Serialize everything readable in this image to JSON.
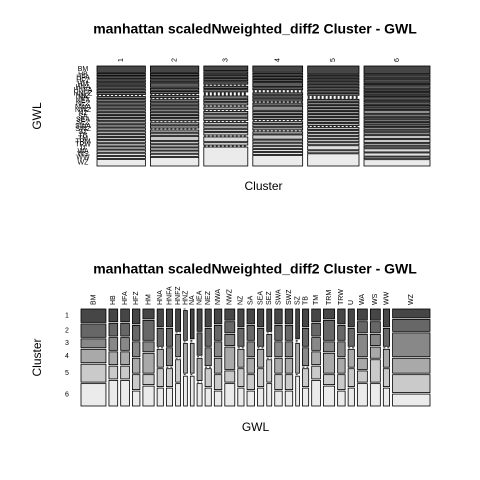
{
  "chart_data": [
    {
      "type": "mosaic",
      "title": "manhattan scaledNweighted_diff2 Cluster - GWL",
      "xlabel": "Cluster",
      "ylabel": "GWL",
      "x_categories": [
        "1",
        "2",
        "3",
        "4",
        "5",
        "6"
      ],
      "y_categories": [
        "BM",
        "HB",
        "HFA",
        "HFZ",
        "HM",
        "HNA",
        "HNFA",
        "HNFZ",
        "HNZ",
        "NA",
        "NEA",
        "NEZ",
        "NWA",
        "NWZ",
        "NZ",
        "SA",
        "SEA",
        "SEZ",
        "SWA",
        "SWZ",
        "SZ",
        "TB",
        "TM",
        "TRM",
        "TRW",
        "U",
        "WA",
        "WS",
        "WW",
        "WZ"
      ],
      "values": [
        [
          3,
          1,
          1,
          1,
          1,
          1,
          1,
          1,
          0,
          1,
          1,
          1,
          1,
          1,
          1,
          1,
          1,
          1,
          1,
          1,
          1,
          1,
          1,
          1,
          1,
          1,
          1,
          1,
          1,
          3
        ],
        [
          3,
          1,
          1,
          1,
          2,
          1,
          1,
          0,
          1,
          0,
          1,
          1,
          1,
          1,
          1,
          1,
          1,
          0,
          1,
          1,
          0,
          1,
          1,
          2,
          1,
          1,
          1,
          1,
          1,
          4
        ],
        [
          2,
          1,
          1,
          1,
          1,
          0,
          1,
          1,
          0,
          0,
          0,
          1,
          1,
          1,
          0,
          1,
          0,
          1,
          1,
          1,
          0,
          1,
          1,
          1,
          1,
          0,
          2,
          1,
          0,
          8
        ],
        [
          3,
          1,
          1,
          1,
          2,
          1,
          0,
          0,
          1,
          1,
          1,
          0,
          1,
          2,
          1,
          1,
          1,
          0,
          1,
          1,
          1,
          0,
          1,
          2,
          1,
          1,
          1,
          1,
          1,
          5
        ],
        [
          4,
          1,
          1,
          1,
          1,
          1,
          1,
          1,
          0,
          0,
          0,
          1,
          1,
          1,
          1,
          1,
          1,
          1,
          1,
          1,
          0,
          1,
          1,
          1,
          1,
          1,
          1,
          2,
          1,
          6
        ],
        [
          5,
          2,
          2,
          1,
          2,
          1,
          1,
          1,
          1,
          1,
          1,
          1,
          1,
          2,
          1,
          1,
          1,
          1,
          1,
          1,
          1,
          1,
          2,
          2,
          1,
          1,
          2,
          2,
          1,
          4
        ]
      ]
    },
    {
      "type": "mosaic",
      "title": "manhattan scaledNweighted_diff2 Cluster - GWL",
      "xlabel": "GWL",
      "ylabel": "Cluster",
      "x_categories": [
        "BM",
        "HB",
        "HFA",
        "HFZ",
        "HM",
        "HNA",
        "HNFA",
        "HNFZ",
        "HNZ",
        "NA",
        "NEA",
        "NEZ",
        "NWA",
        "NWZ",
        "NZ",
        "SA",
        "SEA",
        "SEZ",
        "SWA",
        "SWZ",
        "SZ",
        "TB",
        "TM",
        "TRM",
        "TRW",
        "U",
        "WA",
        "WS",
        "WW",
        "WZ"
      ],
      "y_categories": [
        "1",
        "2",
        "3",
        "4",
        "5",
        "6"
      ],
      "values": [
        [
          3,
          3,
          2,
          3,
          4,
          5
        ],
        [
          1,
          1,
          1,
          1,
          1,
          2
        ],
        [
          1,
          1,
          1,
          1,
          1,
          2
        ],
        [
          1,
          1,
          1,
          1,
          1,
          1
        ],
        [
          1,
          2,
          1,
          2,
          1,
          2
        ],
        [
          1,
          1,
          0,
          1,
          1,
          1
        ],
        [
          1,
          1,
          1,
          0,
          1,
          1
        ],
        [
          1,
          0,
          1,
          0,
          1,
          1
        ],
        [
          0,
          1,
          0,
          1,
          0,
          1
        ],
        [
          1,
          0,
          0,
          1,
          0,
          1
        ],
        [
          1,
          1,
          0,
          1,
          0,
          1
        ],
        [
          1,
          1,
          1,
          0,
          1,
          1
        ],
        [
          1,
          1,
          1,
          1,
          1,
          1
        ],
        [
          1,
          1,
          1,
          2,
          1,
          2
        ],
        [
          1,
          1,
          0,
          1,
          1,
          1
        ],
        [
          1,
          1,
          1,
          1,
          1,
          1
        ],
        [
          1,
          1,
          0,
          1,
          1,
          1
        ],
        [
          1,
          0,
          1,
          0,
          1,
          1
        ],
        [
          1,
          1,
          1,
          1,
          1,
          1
        ],
        [
          1,
          1,
          1,
          1,
          1,
          1
        ],
        [
          1,
          0,
          0,
          1,
          0,
          1
        ],
        [
          1,
          1,
          1,
          0,
          1,
          1
        ],
        [
          1,
          1,
          1,
          1,
          1,
          2
        ],
        [
          1,
          2,
          1,
          2,
          1,
          2
        ],
        [
          1,
          1,
          1,
          1,
          1,
          1
        ],
        [
          1,
          1,
          0,
          1,
          1,
          1
        ],
        [
          1,
          1,
          2,
          1,
          1,
          2
        ],
        [
          1,
          1,
          1,
          1,
          2,
          2
        ],
        [
          1,
          1,
          0,
          1,
          1,
          1
        ],
        [
          3,
          4,
          8,
          5,
          6,
          4
        ]
      ]
    }
  ]
}
